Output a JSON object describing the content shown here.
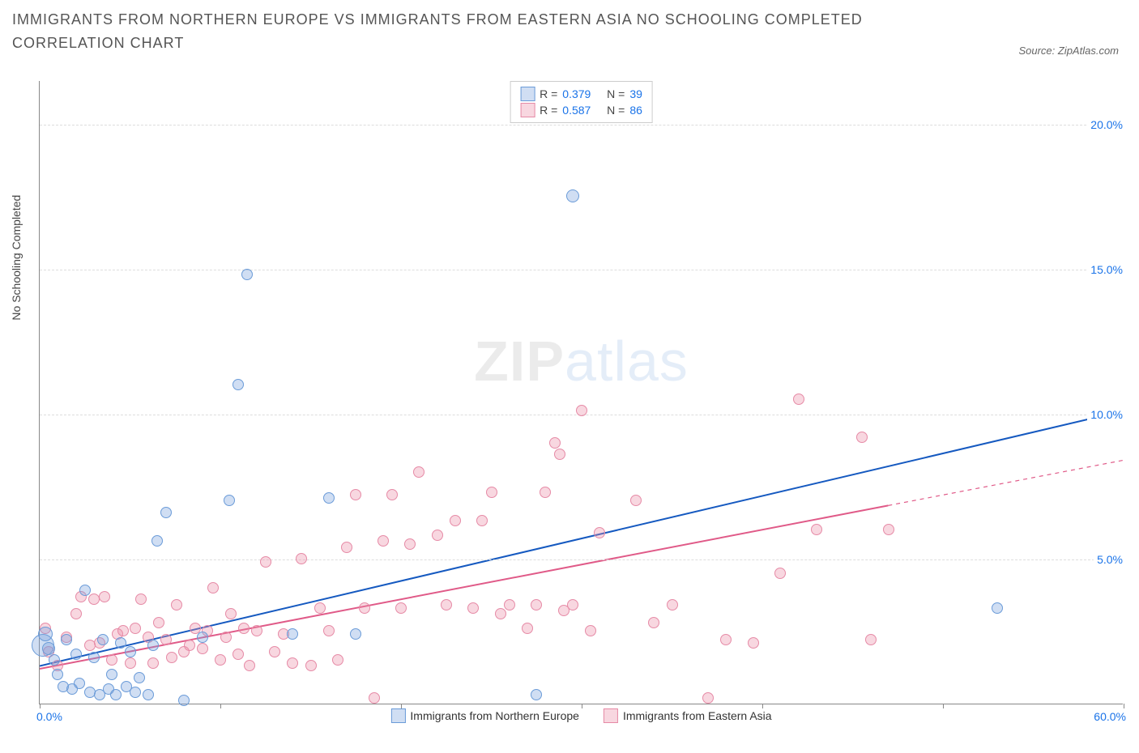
{
  "title": "IMMIGRANTS FROM NORTHERN EUROPE VS IMMIGRANTS FROM EASTERN ASIA NO SCHOOLING COMPLETED CORRELATION CHART",
  "source_label": "Source: ZipAtlas.com",
  "y_axis_title": "No Schooling Completed",
  "watermark_a": "ZIP",
  "watermark_b": "atlas",
  "chart": {
    "type": "scatter",
    "xlim": [
      0,
      60
    ],
    "ylim": [
      0,
      21.5
    ],
    "x_ticks": [
      0,
      10,
      20,
      30,
      40,
      50,
      60
    ],
    "x_tick_labels_left": "0.0%",
    "x_tick_labels_right": "60.0%",
    "x_label_color": "#1a73e8",
    "y_gridlines": [
      5,
      10,
      15,
      20
    ],
    "y_tick_labels": [
      "5.0%",
      "10.0%",
      "15.0%",
      "20.0%"
    ],
    "y_label_color": "#1a73e8",
    "grid_color": "#dddddd",
    "background_color": "#ffffff"
  },
  "series": {
    "blue": {
      "label": "Immigrants from Northern Europe",
      "fill": "rgba(120,160,220,0.35)",
      "stroke": "#6a9bd8",
      "line_color": "#1559c0",
      "line_width": 2,
      "R": "0.379",
      "N": "39",
      "trend": {
        "x1": 0,
        "y1": 1.3,
        "x2": 60,
        "y2": 10.1,
        "solid_until_x": 60
      },
      "points": [
        {
          "x": 0.2,
          "y": 2.0,
          "r": 14
        },
        {
          "x": 0.3,
          "y": 2.4,
          "r": 9
        },
        {
          "x": 0.5,
          "y": 1.9,
          "r": 8
        },
        {
          "x": 0.8,
          "y": 1.5,
          "r": 7
        },
        {
          "x": 1.0,
          "y": 1.0,
          "r": 7
        },
        {
          "x": 1.3,
          "y": 0.6,
          "r": 7
        },
        {
          "x": 1.5,
          "y": 2.2,
          "r": 7
        },
        {
          "x": 1.8,
          "y": 0.5,
          "r": 7
        },
        {
          "x": 2.0,
          "y": 1.7,
          "r": 7
        },
        {
          "x": 2.2,
          "y": 0.7,
          "r": 7
        },
        {
          "x": 2.5,
          "y": 3.9,
          "r": 7
        },
        {
          "x": 2.8,
          "y": 0.4,
          "r": 7
        },
        {
          "x": 3.0,
          "y": 1.6,
          "r": 7
        },
        {
          "x": 3.3,
          "y": 0.3,
          "r": 7
        },
        {
          "x": 3.5,
          "y": 2.2,
          "r": 7
        },
        {
          "x": 3.8,
          "y": 0.5,
          "r": 7
        },
        {
          "x": 4.0,
          "y": 1.0,
          "r": 7
        },
        {
          "x": 4.2,
          "y": 0.3,
          "r": 7
        },
        {
          "x": 4.5,
          "y": 2.1,
          "r": 7
        },
        {
          "x": 4.8,
          "y": 0.6,
          "r": 7
        },
        {
          "x": 5.0,
          "y": 1.8,
          "r": 7
        },
        {
          "x": 5.3,
          "y": 0.4,
          "r": 7
        },
        {
          "x": 5.5,
          "y": 0.9,
          "r": 7
        },
        {
          "x": 6.0,
          "y": 0.3,
          "r": 7
        },
        {
          "x": 6.3,
          "y": 2.0,
          "r": 7
        },
        {
          "x": 6.5,
          "y": 5.6,
          "r": 7
        },
        {
          "x": 7.0,
          "y": 6.6,
          "r": 7
        },
        {
          "x": 8.0,
          "y": 0.1,
          "r": 7
        },
        {
          "x": 9.0,
          "y": 2.3,
          "r": 7
        },
        {
          "x": 10.5,
          "y": 7.0,
          "r": 7
        },
        {
          "x": 11.0,
          "y": 11.0,
          "r": 7
        },
        {
          "x": 11.5,
          "y": 14.8,
          "r": 7
        },
        {
          "x": 14.0,
          "y": 2.4,
          "r": 7
        },
        {
          "x": 16.0,
          "y": 7.1,
          "r": 7
        },
        {
          "x": 17.5,
          "y": 2.4,
          "r": 7
        },
        {
          "x": 27.5,
          "y": 0.3,
          "r": 7
        },
        {
          "x": 29.5,
          "y": 17.5,
          "r": 8
        },
        {
          "x": 53.0,
          "y": 3.3,
          "r": 7
        }
      ]
    },
    "pink": {
      "label": "Immigrants from Eastern Asia",
      "fill": "rgba(235,140,165,0.35)",
      "stroke": "#e68aa6",
      "line_color": "#e05a88",
      "line_width": 2,
      "R": "0.587",
      "N": "86",
      "trend": {
        "x1": 0,
        "y1": 1.2,
        "x2": 60,
        "y2": 8.4,
        "solid_until_x": 47
      },
      "points": [
        {
          "x": 0.3,
          "y": 2.6,
          "r": 7
        },
        {
          "x": 0.5,
          "y": 1.8,
          "r": 7
        },
        {
          "x": 1.0,
          "y": 1.3,
          "r": 7
        },
        {
          "x": 1.5,
          "y": 2.3,
          "r": 7
        },
        {
          "x": 2.0,
          "y": 3.1,
          "r": 7
        },
        {
          "x": 2.3,
          "y": 3.7,
          "r": 7
        },
        {
          "x": 2.8,
          "y": 2.0,
          "r": 7
        },
        {
          "x": 3.0,
          "y": 3.6,
          "r": 7
        },
        {
          "x": 3.3,
          "y": 2.1,
          "r": 7
        },
        {
          "x": 3.6,
          "y": 3.7,
          "r": 7
        },
        {
          "x": 4.0,
          "y": 1.5,
          "r": 7
        },
        {
          "x": 4.3,
          "y": 2.4,
          "r": 7
        },
        {
          "x": 4.6,
          "y": 2.5,
          "r": 7
        },
        {
          "x": 5.0,
          "y": 1.4,
          "r": 7
        },
        {
          "x": 5.3,
          "y": 2.6,
          "r": 7
        },
        {
          "x": 5.6,
          "y": 3.6,
          "r": 7
        },
        {
          "x": 6.0,
          "y": 2.3,
          "r": 7
        },
        {
          "x": 6.3,
          "y": 1.4,
          "r": 7
        },
        {
          "x": 6.6,
          "y": 2.8,
          "r": 7
        },
        {
          "x": 7.0,
          "y": 2.2,
          "r": 7
        },
        {
          "x": 7.3,
          "y": 1.6,
          "r": 7
        },
        {
          "x": 7.6,
          "y": 3.4,
          "r": 7
        },
        {
          "x": 8.0,
          "y": 1.8,
          "r": 7
        },
        {
          "x": 8.3,
          "y": 2.0,
          "r": 7
        },
        {
          "x": 8.6,
          "y": 2.6,
          "r": 7
        },
        {
          "x": 9.0,
          "y": 1.9,
          "r": 7
        },
        {
          "x": 9.3,
          "y": 2.5,
          "r": 7
        },
        {
          "x": 9.6,
          "y": 4.0,
          "r": 7
        },
        {
          "x": 10.0,
          "y": 1.5,
          "r": 7
        },
        {
          "x": 10.3,
          "y": 2.3,
          "r": 7
        },
        {
          "x": 10.6,
          "y": 3.1,
          "r": 7
        },
        {
          "x": 11.0,
          "y": 1.7,
          "r": 7
        },
        {
          "x": 11.3,
          "y": 2.6,
          "r": 7
        },
        {
          "x": 11.6,
          "y": 1.3,
          "r": 7
        },
        {
          "x": 12.0,
          "y": 2.5,
          "r": 7
        },
        {
          "x": 12.5,
          "y": 4.9,
          "r": 7
        },
        {
          "x": 13.0,
          "y": 1.8,
          "r": 7
        },
        {
          "x": 13.5,
          "y": 2.4,
          "r": 7
        },
        {
          "x": 14.0,
          "y": 1.4,
          "r": 7
        },
        {
          "x": 14.5,
          "y": 5.0,
          "r": 7
        },
        {
          "x": 15.0,
          "y": 1.3,
          "r": 7
        },
        {
          "x": 15.5,
          "y": 3.3,
          "r": 7
        },
        {
          "x": 16.0,
          "y": 2.5,
          "r": 7
        },
        {
          "x": 16.5,
          "y": 1.5,
          "r": 7
        },
        {
          "x": 17.0,
          "y": 5.4,
          "r": 7
        },
        {
          "x": 17.5,
          "y": 7.2,
          "r": 7
        },
        {
          "x": 18.0,
          "y": 3.3,
          "r": 7
        },
        {
          "x": 18.5,
          "y": 0.2,
          "r": 7
        },
        {
          "x": 19.0,
          "y": 5.6,
          "r": 7
        },
        {
          "x": 19.5,
          "y": 7.2,
          "r": 7
        },
        {
          "x": 20.0,
          "y": 3.3,
          "r": 7
        },
        {
          "x": 20.5,
          "y": 5.5,
          "r": 7
        },
        {
          "x": 21.0,
          "y": 8.0,
          "r": 7
        },
        {
          "x": 22.0,
          "y": 5.8,
          "r": 7
        },
        {
          "x": 22.5,
          "y": 3.4,
          "r": 7
        },
        {
          "x": 23.0,
          "y": 6.3,
          "r": 7
        },
        {
          "x": 24.0,
          "y": 3.3,
          "r": 7
        },
        {
          "x": 24.5,
          "y": 6.3,
          "r": 7
        },
        {
          "x": 25.0,
          "y": 7.3,
          "r": 7
        },
        {
          "x": 25.5,
          "y": 3.1,
          "r": 7
        },
        {
          "x": 26.0,
          "y": 3.4,
          "r": 7
        },
        {
          "x": 27.0,
          "y": 2.6,
          "r": 7
        },
        {
          "x": 27.5,
          "y": 3.4,
          "r": 7
        },
        {
          "x": 28.0,
          "y": 7.3,
          "r": 7
        },
        {
          "x": 28.5,
          "y": 9.0,
          "r": 7
        },
        {
          "x": 28.8,
          "y": 8.6,
          "r": 7
        },
        {
          "x": 29.0,
          "y": 3.2,
          "r": 7
        },
        {
          "x": 29.5,
          "y": 3.4,
          "r": 7
        },
        {
          "x": 30.0,
          "y": 10.1,
          "r": 7
        },
        {
          "x": 30.5,
          "y": 2.5,
          "r": 7
        },
        {
          "x": 31.0,
          "y": 5.9,
          "r": 7
        },
        {
          "x": 33.0,
          "y": 7.0,
          "r": 7
        },
        {
          "x": 34.0,
          "y": 2.8,
          "r": 7
        },
        {
          "x": 35.0,
          "y": 3.4,
          "r": 7
        },
        {
          "x": 37.0,
          "y": 0.2,
          "r": 7
        },
        {
          "x": 38.0,
          "y": 2.2,
          "r": 7
        },
        {
          "x": 39.5,
          "y": 2.1,
          "r": 7
        },
        {
          "x": 41.0,
          "y": 4.5,
          "r": 7
        },
        {
          "x": 42.0,
          "y": 10.5,
          "r": 7
        },
        {
          "x": 43.0,
          "y": 6.0,
          "r": 7
        },
        {
          "x": 45.5,
          "y": 9.2,
          "r": 7
        },
        {
          "x": 46.0,
          "y": 2.2,
          "r": 7
        },
        {
          "x": 47.0,
          "y": 6.0,
          "r": 7
        }
      ]
    }
  },
  "legend_labels": {
    "R": "R =",
    "N": "N ="
  }
}
